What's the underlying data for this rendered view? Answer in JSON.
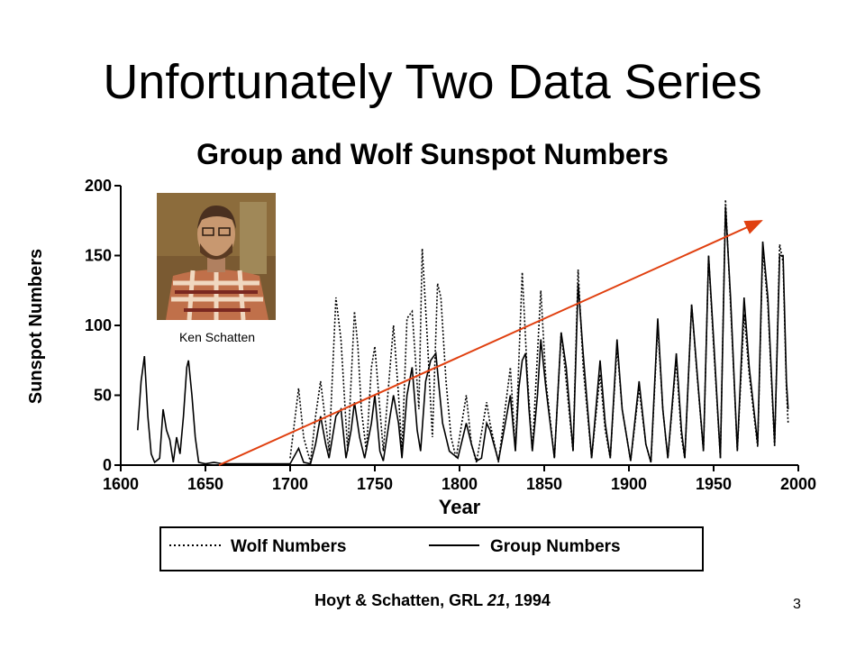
{
  "slide": {
    "title": "Unfortunately Two Data Series",
    "photo_caption": "Ken Schatten",
    "citation": {
      "prefix": "Hoyt & Schatten, GRL ",
      "volume": "21",
      "suffix": ", 1994"
    },
    "page_number": "3"
  },
  "colors": {
    "series": "#000000",
    "trend_arrow": "#e04010",
    "photo_bg": "#7a5a32"
  },
  "chart_data": {
    "type": "line",
    "title": "Group and Wolf Sunspot Numbers",
    "xlabel": "Year",
    "ylabel": "Sunspot Numbers",
    "xlim": [
      1600,
      2000
    ],
    "ylim": [
      0,
      200
    ],
    "x_ticks": [
      1600,
      1650,
      1700,
      1750,
      1800,
      1850,
      1900,
      1950,
      2000
    ],
    "y_ticks": [
      0,
      50,
      100,
      150,
      200
    ],
    "grid": false,
    "legend_position": "bottom",
    "series": [
      {
        "name": "Group Numbers",
        "style": "solid",
        "points": [
          [
            1610,
            25
          ],
          [
            1612,
            60
          ],
          [
            1614,
            78
          ],
          [
            1616,
            35
          ],
          [
            1618,
            8
          ],
          [
            1620,
            2
          ],
          [
            1623,
            5
          ],
          [
            1625,
            40
          ],
          [
            1627,
            25
          ],
          [
            1629,
            18
          ],
          [
            1631,
            2
          ],
          [
            1633,
            20
          ],
          [
            1635,
            8
          ],
          [
            1637,
            35
          ],
          [
            1639,
            70
          ],
          [
            1640,
            75
          ],
          [
            1642,
            50
          ],
          [
            1644,
            20
          ],
          [
            1646,
            2
          ],
          [
            1650,
            1
          ],
          [
            1655,
            2
          ],
          [
            1660,
            1
          ],
          [
            1670,
            1
          ],
          [
            1680,
            1
          ],
          [
            1690,
            1
          ],
          [
            1700,
            1
          ],
          [
            1705,
            12
          ],
          [
            1708,
            2
          ],
          [
            1712,
            1
          ],
          [
            1715,
            15
          ],
          [
            1718,
            35
          ],
          [
            1721,
            15
          ],
          [
            1723,
            5
          ],
          [
            1727,
            35
          ],
          [
            1730,
            40
          ],
          [
            1733,
            5
          ],
          [
            1736,
            25
          ],
          [
            1738,
            45
          ],
          [
            1741,
            20
          ],
          [
            1744,
            5
          ],
          [
            1748,
            30
          ],
          [
            1750,
            50
          ],
          [
            1753,
            10
          ],
          [
            1755,
            3
          ],
          [
            1759,
            35
          ],
          [
            1761,
            50
          ],
          [
            1764,
            30
          ],
          [
            1766,
            5
          ],
          [
            1769,
            50
          ],
          [
            1772,
            70
          ],
          [
            1775,
            25
          ],
          [
            1777,
            10
          ],
          [
            1780,
            60
          ],
          [
            1783,
            75
          ],
          [
            1786,
            80
          ],
          [
            1788,
            55
          ],
          [
            1790,
            30
          ],
          [
            1794,
            10
          ],
          [
            1799,
            5
          ],
          [
            1804,
            30
          ],
          [
            1807,
            15
          ],
          [
            1810,
            3
          ],
          [
            1813,
            5
          ],
          [
            1816,
            30
          ],
          [
            1818,
            25
          ],
          [
            1823,
            3
          ],
          [
            1830,
            50
          ],
          [
            1833,
            10
          ],
          [
            1835,
            55
          ],
          [
            1837,
            75
          ],
          [
            1839,
            80
          ],
          [
            1841,
            40
          ],
          [
            1843,
            10
          ],
          [
            1846,
            50
          ],
          [
            1848,
            90
          ],
          [
            1851,
            55
          ],
          [
            1856,
            5
          ],
          [
            1860,
            95
          ],
          [
            1863,
            70
          ],
          [
            1867,
            10
          ],
          [
            1870,
            130
          ],
          [
            1873,
            80
          ],
          [
            1878,
            5
          ],
          [
            1883,
            75
          ],
          [
            1886,
            30
          ],
          [
            1889,
            5
          ],
          [
            1893,
            90
          ],
          [
            1896,
            40
          ],
          [
            1901,
            3
          ],
          [
            1906,
            60
          ],
          [
            1910,
            15
          ],
          [
            1913,
            2
          ],
          [
            1917,
            105
          ],
          [
            1920,
            40
          ],
          [
            1923,
            5
          ],
          [
            1928,
            80
          ],
          [
            1931,
            25
          ],
          [
            1933,
            5
          ],
          [
            1937,
            115
          ],
          [
            1940,
            70
          ],
          [
            1944,
            10
          ],
          [
            1947,
            150
          ],
          [
            1950,
            90
          ],
          [
            1954,
            5
          ],
          [
            1957,
            185
          ],
          [
            1960,
            120
          ],
          [
            1964,
            10
          ],
          [
            1968,
            120
          ],
          [
            1971,
            70
          ],
          [
            1976,
            15
          ],
          [
            1979,
            160
          ],
          [
            1982,
            120
          ],
          [
            1986,
            15
          ],
          [
            1989,
            150
          ],
          [
            1991,
            150
          ],
          [
            1993,
            60
          ],
          [
            1994,
            40
          ]
        ]
      },
      {
        "name": "Wolf Numbers",
        "style": "dotted",
        "points": [
          [
            1700,
            5
          ],
          [
            1705,
            55
          ],
          [
            1708,
            20
          ],
          [
            1712,
            2
          ],
          [
            1715,
            35
          ],
          [
            1718,
            60
          ],
          [
            1721,
            30
          ],
          [
            1723,
            10
          ],
          [
            1727,
            120
          ],
          [
            1730,
            90
          ],
          [
            1733,
            30
          ],
          [
            1734,
            10
          ],
          [
            1738,
            110
          ],
          [
            1740,
            85
          ],
          [
            1742,
            40
          ],
          [
            1745,
            10
          ],
          [
            1748,
            70
          ],
          [
            1750,
            85
          ],
          [
            1753,
            40
          ],
          [
            1755,
            10
          ],
          [
            1759,
            70
          ],
          [
            1761,
            100
          ],
          [
            1764,
            50
          ],
          [
            1766,
            10
          ],
          [
            1769,
            105
          ],
          [
            1772,
            110
          ],
          [
            1776,
            40
          ],
          [
            1778,
            155
          ],
          [
            1781,
            90
          ],
          [
            1784,
            20
          ],
          [
            1787,
            130
          ],
          [
            1789,
            120
          ],
          [
            1792,
            60
          ],
          [
            1795,
            20
          ],
          [
            1798,
            5
          ],
          [
            1804,
            50
          ],
          [
            1807,
            15
          ],
          [
            1810,
            2
          ],
          [
            1816,
            45
          ],
          [
            1818,
            30
          ],
          [
            1823,
            2
          ],
          [
            1830,
            70
          ],
          [
            1833,
            10
          ],
          [
            1837,
            138
          ],
          [
            1840,
            65
          ],
          [
            1843,
            10
          ],
          [
            1848,
            125
          ],
          [
            1851,
            60
          ],
          [
            1856,
            5
          ],
          [
            1860,
            95
          ],
          [
            1863,
            60
          ],
          [
            1867,
            10
          ],
          [
            1870,
            140
          ],
          [
            1873,
            70
          ],
          [
            1878,
            5
          ],
          [
            1883,
            65
          ],
          [
            1886,
            25
          ],
          [
            1889,
            5
          ],
          [
            1893,
            85
          ],
          [
            1896,
            40
          ],
          [
            1901,
            3
          ],
          [
            1906,
            55
          ],
          [
            1910,
            15
          ],
          [
            1913,
            2
          ],
          [
            1917,
            100
          ],
          [
            1920,
            40
          ],
          [
            1923,
            5
          ],
          [
            1928,
            75
          ],
          [
            1931,
            20
          ],
          [
            1933,
            5
          ],
          [
            1937,
            115
          ],
          [
            1940,
            68
          ],
          [
            1944,
            10
          ],
          [
            1947,
            150
          ],
          [
            1950,
            85
          ],
          [
            1954,
            5
          ],
          [
            1957,
            190
          ],
          [
            1960,
            115
          ],
          [
            1964,
            10
          ],
          [
            1968,
            108
          ],
          [
            1971,
            65
          ],
          [
            1976,
            13
          ],
          [
            1979,
            155
          ],
          [
            1982,
            115
          ],
          [
            1986,
            13
          ],
          [
            1989,
            158
          ],
          [
            1991,
            145
          ],
          [
            1993,
            55
          ],
          [
            1994,
            30
          ]
        ]
      }
    ]
  }
}
